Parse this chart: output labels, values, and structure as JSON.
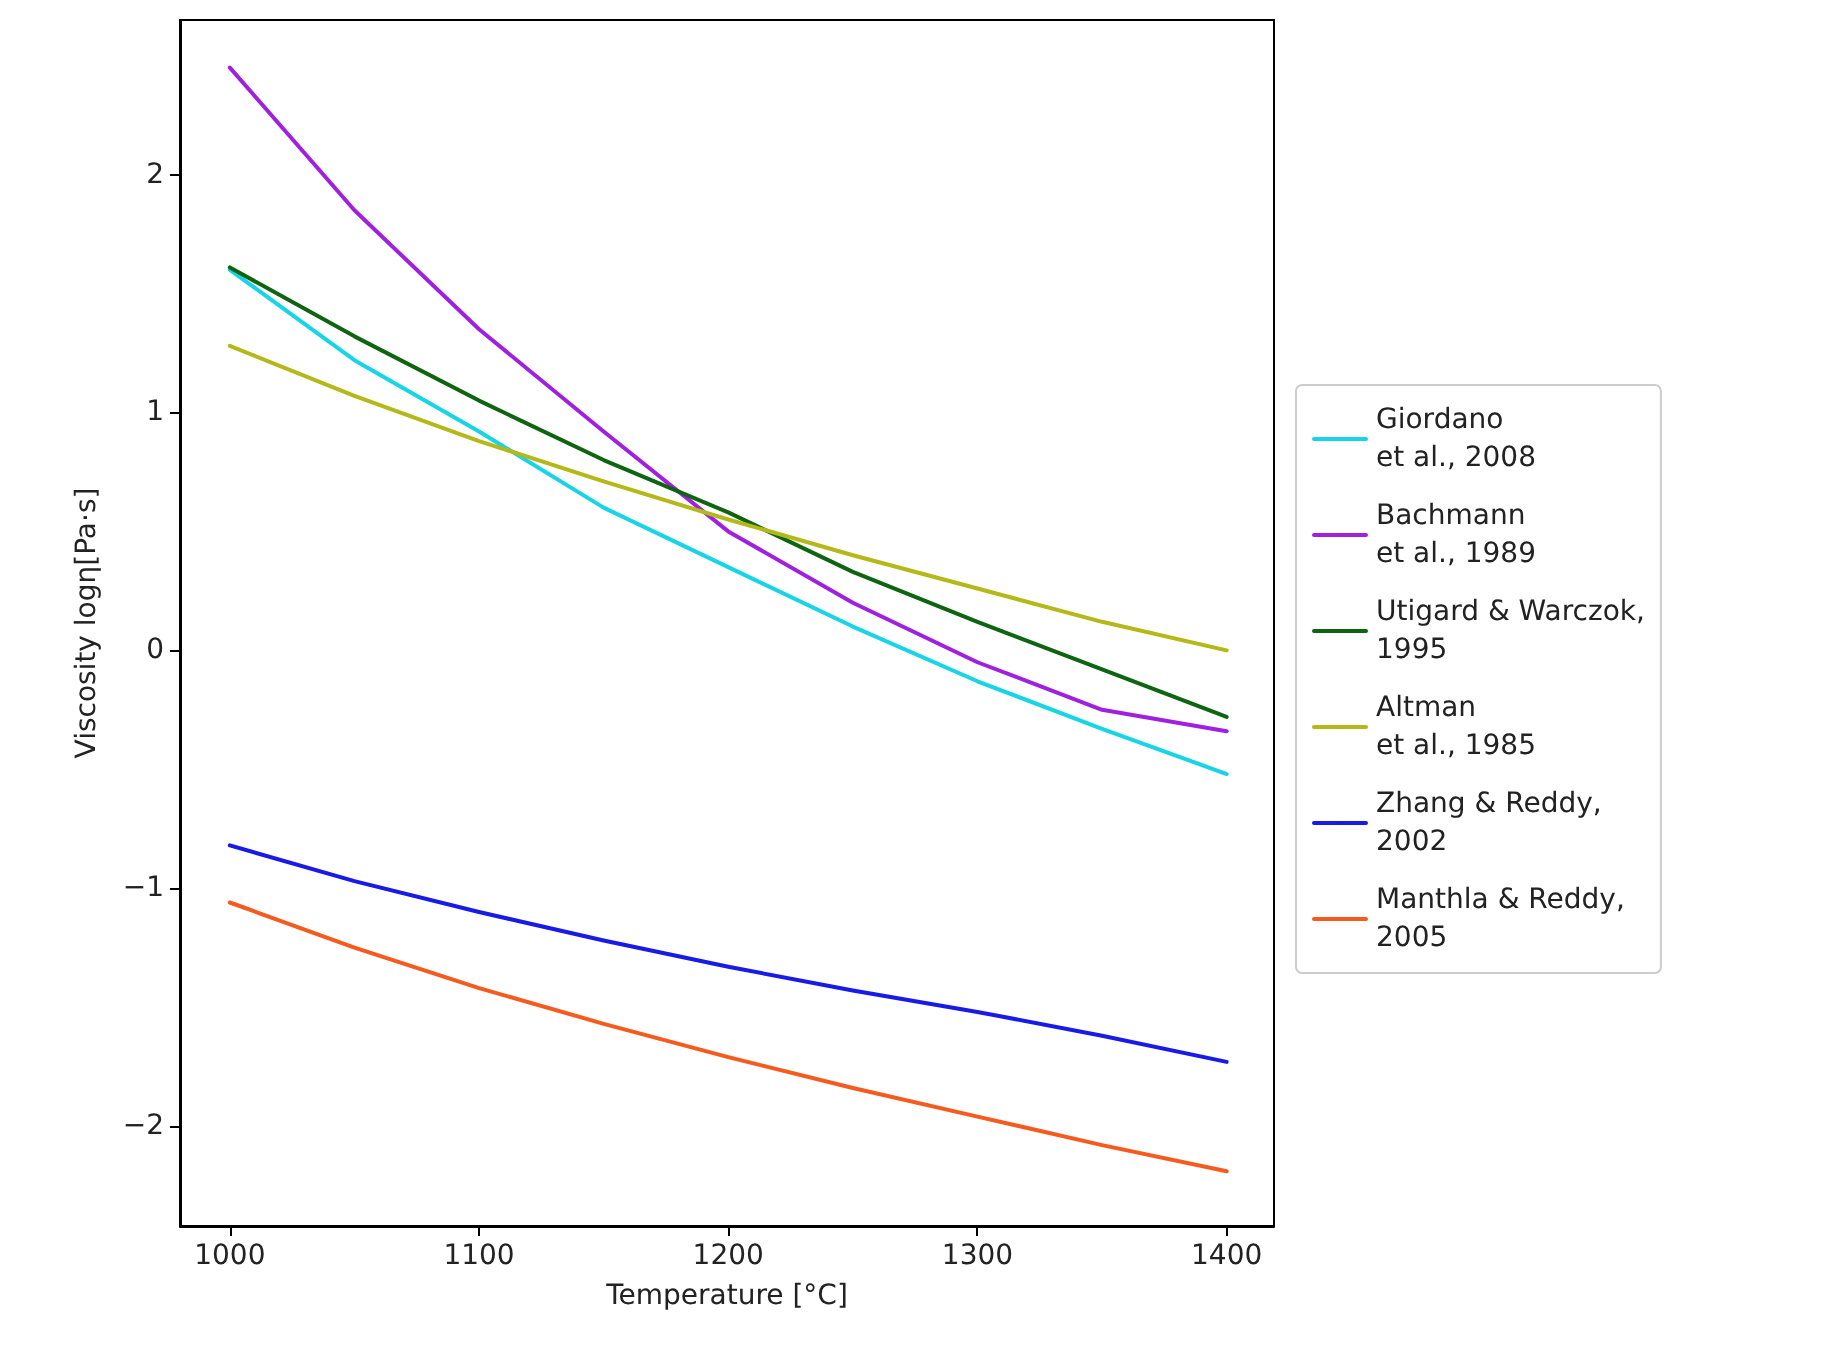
{
  "chart_data": {
    "type": "line",
    "xlabel": "Temperature [°C]",
    "ylabel": "Viscosity logη[Pa·s]",
    "x": [
      1000,
      1050,
      1100,
      1150,
      1200,
      1250,
      1300,
      1350,
      1400
    ],
    "xlim": [
      980,
      1419
    ],
    "xticks": [
      1000,
      1100,
      1200,
      1300,
      1400
    ],
    "ylim": [
      -2.42,
      2.65
    ],
    "yticks": [
      {
        "value": -2,
        "label": "−2"
      },
      {
        "value": -1,
        "label": "−1"
      },
      0,
      1,
      2
    ],
    "grid": false,
    "legend": "right",
    "marker": "none",
    "line_style": "solid",
    "series": [
      {
        "name": "Giordano\net al., 2008",
        "color": "#17d4e6",
        "values": [
          1.6,
          1.22,
          0.92,
          0.6,
          0.35,
          0.1,
          -0.13,
          -0.33,
          -0.52
        ]
      },
      {
        "name": "Bachmann\net al., 1989",
        "color": "#a020e0",
        "values": [
          2.45,
          1.85,
          1.35,
          0.92,
          0.5,
          0.2,
          -0.05,
          -0.25,
          -0.34
        ]
      },
      {
        "name": "Utigard & Warczok,\n1995",
        "color": "#0e6410",
        "values": [
          1.61,
          1.32,
          1.05,
          0.8,
          0.58,
          0.33,
          0.12,
          -0.08,
          -0.28
        ]
      },
      {
        "name": "Altman\net al., 1985",
        "color": "#b4b818",
        "values": [
          1.28,
          1.07,
          0.88,
          0.71,
          0.55,
          0.4,
          0.26,
          0.12,
          0.0
        ]
      },
      {
        "name": "Zhang & Reddy,\n2002",
        "color": "#1a1ae6",
        "values": [
          -0.82,
          -0.97,
          -1.1,
          -1.22,
          -1.33,
          -1.43,
          -1.52,
          -1.62,
          -1.73
        ]
      },
      {
        "name": "Manthla & Reddy,\n2005",
        "color": "#f55a1e",
        "values": [
          -1.06,
          -1.25,
          -1.42,
          -1.57,
          -1.71,
          -1.84,
          -1.96,
          -2.08,
          -2.19
        ]
      }
    ]
  }
}
